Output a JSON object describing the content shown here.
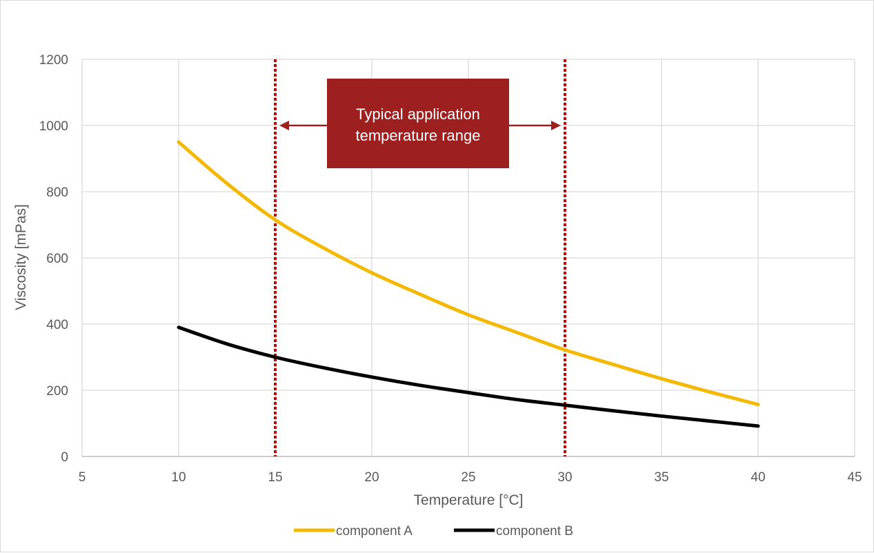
{
  "chart_data": {
    "type": "line",
    "xlabel": "Temperature [°C]",
    "ylabel": "Viscosity [mPas]",
    "xlim": [
      5,
      45
    ],
    "ylim": [
      0,
      1200
    ],
    "xticks": [
      5,
      10,
      15,
      20,
      25,
      30,
      35,
      40,
      45
    ],
    "yticks": [
      0,
      200,
      400,
      600,
      800,
      1000,
      1200
    ],
    "grid": true,
    "legend": "bottom",
    "series": [
      {
        "name": "component A",
        "color": "#f5b800",
        "x": [
          10,
          12.5,
          15,
          17.5,
          20,
          22.5,
          25,
          27.5,
          30,
          32.5,
          35,
          37.5,
          40
        ],
        "y": [
          950,
          825,
          715,
          630,
          555,
          490,
          428,
          375,
          322,
          278,
          235,
          195,
          157
        ]
      },
      {
        "name": "component B",
        "color": "#000000",
        "x": [
          10,
          12.5,
          15,
          17.5,
          20,
          22.5,
          25,
          27.5,
          30,
          32.5,
          35,
          37.5,
          40
        ],
        "y": [
          390,
          340,
          300,
          268,
          240,
          215,
          193,
          172,
          155,
          138,
          122,
          107,
          92
        ]
      }
    ],
    "reference_lines": [
      {
        "x": 15,
        "color": "#c00000",
        "style": "dotted"
      },
      {
        "x": 30,
        "color": "#c00000",
        "style": "dotted"
      }
    ],
    "annotation": {
      "line1": "Typical application",
      "line2": "temperature range",
      "box_color": "#9e1f1f",
      "arrow_y": 1000,
      "arrow_x_range": [
        15,
        30
      ]
    }
  }
}
